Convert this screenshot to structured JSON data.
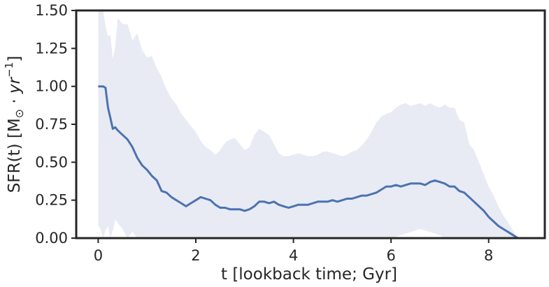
{
  "chart_data": {
    "type": "line",
    "xlabel": "t [lookback time; Gyr]",
    "ylabel": {
      "prefix": "SFR(t) [M",
      "sun": "⊙",
      "dot": " · ",
      "unit": "yr",
      "exp": "−1",
      "suffix": "]"
    },
    "xlim": [
      -0.45,
      9.15
    ],
    "ylim": [
      0.0,
      1.5
    ],
    "xticks": [
      0,
      2,
      4,
      6,
      8
    ],
    "yticks": [
      0.0,
      0.25,
      0.5,
      0.75,
      1.0,
      1.25,
      1.5
    ],
    "xtick_labels": [
      "0",
      "2",
      "4",
      "6",
      "8"
    ],
    "ytick_labels": [
      "0.00",
      "0.25",
      "0.50",
      "0.75",
      "1.00",
      "1.25",
      "1.50"
    ],
    "grid": false,
    "legend": "none",
    "colors": {
      "line": "#4c72b0",
      "band": "#e8ebf4",
      "axis": "#262626"
    },
    "series": [
      {
        "x": [
          0.0,
          0.05,
          0.1,
          0.15,
          0.2,
          0.25,
          0.3,
          0.35,
          0.4,
          0.5,
          0.6,
          0.7,
          0.8,
          0.9,
          1.0,
          1.1,
          1.2,
          1.3,
          1.4,
          1.5,
          1.6,
          1.7,
          1.8,
          1.9,
          2.0,
          2.1,
          2.2,
          2.3,
          2.4,
          2.5,
          2.6,
          2.7,
          2.8,
          2.9,
          3.0,
          3.1,
          3.2,
          3.3,
          3.4,
          3.5,
          3.6,
          3.7,
          3.8,
          3.9,
          4.0,
          4.1,
          4.2,
          4.3,
          4.4,
          4.5,
          4.6,
          4.7,
          4.8,
          4.9,
          5.0,
          5.1,
          5.2,
          5.3,
          5.4,
          5.5,
          5.6,
          5.7,
          5.8,
          5.9,
          6.0,
          6.1,
          6.2,
          6.3,
          6.4,
          6.5,
          6.6,
          6.7,
          6.8,
          6.9,
          7.0,
          7.1,
          7.2,
          7.3,
          7.4,
          7.5,
          7.6,
          7.7,
          7.8,
          7.9,
          8.0,
          8.1,
          8.2,
          8.3,
          8.4,
          8.5,
          8.6
        ],
        "y": [
          1.0,
          1.0,
          1.0,
          0.99,
          0.86,
          0.79,
          0.72,
          0.73,
          0.71,
          0.68,
          0.65,
          0.6,
          0.53,
          0.48,
          0.45,
          0.41,
          0.38,
          0.31,
          0.3,
          0.27,
          0.25,
          0.23,
          0.21,
          0.23,
          0.25,
          0.27,
          0.26,
          0.25,
          0.22,
          0.2,
          0.2,
          0.19,
          0.19,
          0.19,
          0.18,
          0.19,
          0.21,
          0.24,
          0.24,
          0.23,
          0.24,
          0.22,
          0.21,
          0.2,
          0.21,
          0.22,
          0.22,
          0.22,
          0.23,
          0.24,
          0.24,
          0.24,
          0.25,
          0.24,
          0.25,
          0.26,
          0.26,
          0.27,
          0.28,
          0.28,
          0.29,
          0.3,
          0.32,
          0.34,
          0.34,
          0.35,
          0.34,
          0.35,
          0.36,
          0.36,
          0.36,
          0.35,
          0.37,
          0.38,
          0.37,
          0.36,
          0.34,
          0.34,
          0.31,
          0.3,
          0.27,
          0.24,
          0.21,
          0.18,
          0.14,
          0.11,
          0.08,
          0.06,
          0.04,
          0.02,
          0.0
        ],
        "lower": [
          0.08,
          0.06,
          0.0,
          0.05,
          0.08,
          0.0,
          0.05,
          0.12,
          0.1,
          0.06,
          0.0,
          0.04,
          0.0,
          0.0,
          0.0,
          0.0,
          0.0,
          0.0,
          0.0,
          0.0,
          0.0,
          0.0,
          0.0,
          0.0,
          0.0,
          0.0,
          0.0,
          0.0,
          0.0,
          0.0,
          0.0,
          0.0,
          0.0,
          0.0,
          0.0,
          0.0,
          0.0,
          0.0,
          0.0,
          0.0,
          0.0,
          0.0,
          0.0,
          0.0,
          0.0,
          0.0,
          0.0,
          0.0,
          0.0,
          0.0,
          0.0,
          0.0,
          0.0,
          0.0,
          0.0,
          0.0,
          0.0,
          0.0,
          0.0,
          0.0,
          0.0,
          0.0,
          0.0,
          0.0,
          0.0,
          0.01,
          0.02,
          0.03,
          0.04,
          0.05,
          0.06,
          0.05,
          0.04,
          0.03,
          0.02,
          0.0,
          0.0,
          0.0,
          0.0,
          0.0,
          0.0,
          0.0,
          0.0,
          0.0,
          0.0,
          0.0,
          0.0,
          0.0,
          0.0,
          0.0,
          0.0
        ],
        "upper": [
          1.5,
          1.5,
          1.5,
          1.4,
          1.33,
          1.34,
          1.18,
          1.26,
          1.45,
          1.41,
          1.41,
          1.3,
          1.35,
          1.24,
          1.19,
          1.2,
          1.12,
          1.06,
          0.98,
          0.92,
          0.88,
          0.82,
          0.78,
          0.74,
          0.7,
          0.64,
          0.6,
          0.58,
          0.55,
          0.58,
          0.63,
          0.65,
          0.66,
          0.62,
          0.58,
          0.6,
          0.68,
          0.72,
          0.7,
          0.68,
          0.62,
          0.56,
          0.54,
          0.54,
          0.55,
          0.56,
          0.55,
          0.54,
          0.54,
          0.55,
          0.57,
          0.57,
          0.56,
          0.55,
          0.54,
          0.55,
          0.57,
          0.58,
          0.61,
          0.65,
          0.7,
          0.76,
          0.8,
          0.82,
          0.83,
          0.86,
          0.88,
          0.89,
          0.87,
          0.88,
          0.89,
          0.87,
          0.89,
          0.87,
          0.86,
          0.88,
          0.86,
          0.86,
          0.78,
          0.76,
          0.62,
          0.58,
          0.5,
          0.42,
          0.34,
          0.28,
          0.21,
          0.15,
          0.1,
          0.05,
          0.0
        ]
      }
    ]
  }
}
